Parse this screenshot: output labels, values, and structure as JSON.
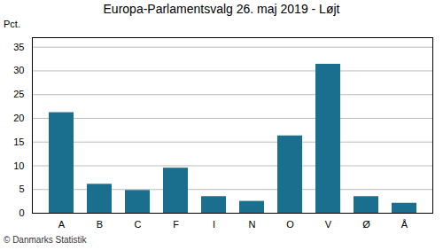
{
  "chart_data": {
    "type": "bar",
    "title": "Europa-Parlamentsvalg 26. maj 2019 - Løjt",
    "ylabel": "Pct.",
    "categories": [
      "A",
      "B",
      "C",
      "F",
      "I",
      "N",
      "O",
      "V",
      "Ø",
      "Å"
    ],
    "values": [
      21.2,
      6.1,
      4.8,
      9.5,
      3.5,
      2.5,
      16.3,
      31.4,
      3.5,
      2.1
    ],
    "color": "#1a6e8e",
    "ylim": [
      0,
      37
    ],
    "yticks": [
      0,
      5,
      10,
      15,
      20,
      25,
      30,
      35
    ],
    "grid": true,
    "annotations": [
      "© Danmarks Statistik"
    ]
  }
}
